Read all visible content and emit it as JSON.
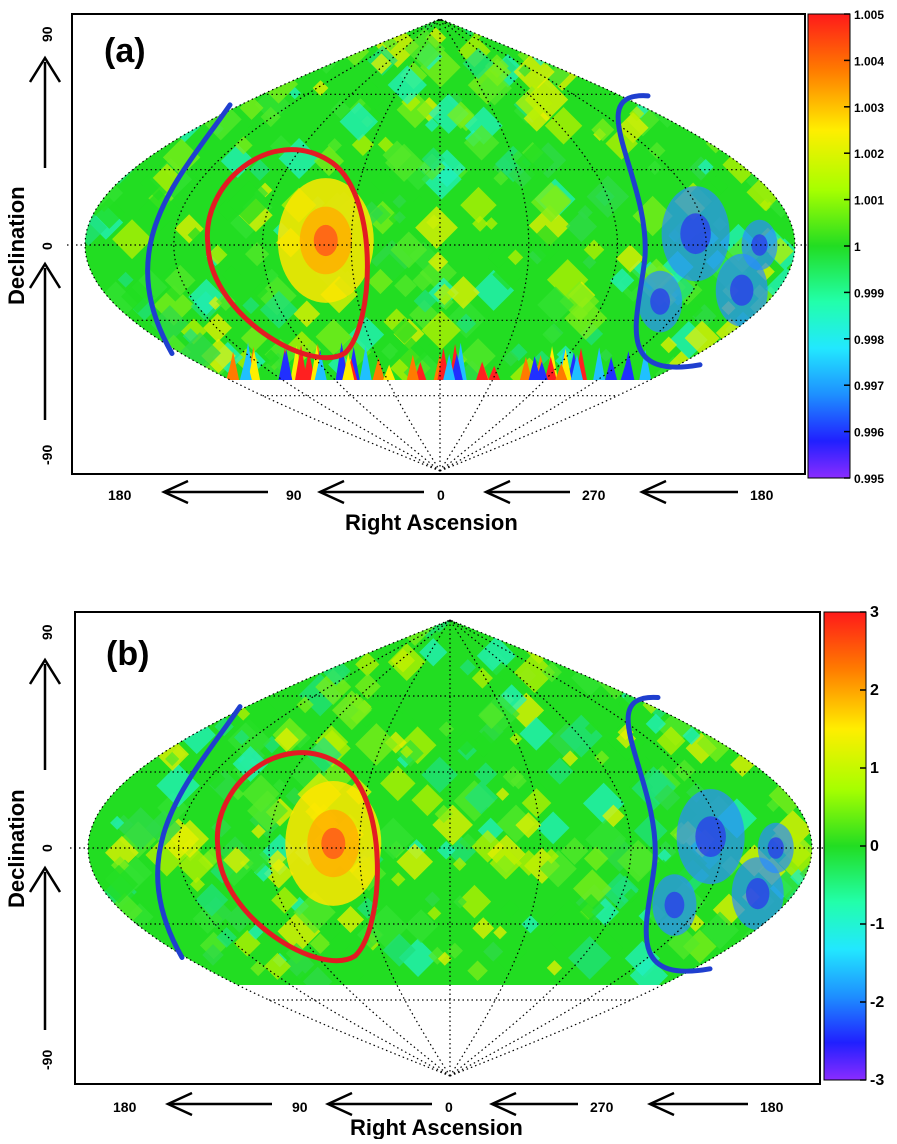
{
  "chart_data": [
    {
      "type": "heatmap",
      "panel_label": "(a)",
      "xlabel": "Right Ascension",
      "ylabel": "Declination",
      "x_ticks": [
        "180",
        "90",
        "0",
        "270",
        "180"
      ],
      "y_ticks": [
        "90",
        "0",
        "-90"
      ],
      "colorbar": {
        "ticks": [
          "1.005",
          "1.004",
          "1.003",
          "1.002",
          "1.001",
          "1",
          "0.999",
          "0.998",
          "0.997",
          "0.996",
          "0.995"
        ],
        "range": [
          0.995,
          1.005
        ]
      },
      "grid": true,
      "projection": "sinusoidal",
      "red_region_center": [
        100,
        0
      ],
      "blue_regions": [
        "left-edge",
        "right-edge"
      ]
    },
    {
      "type": "heatmap",
      "panel_label": "(b)",
      "xlabel": "Right Ascension",
      "ylabel": "Declination",
      "x_ticks": [
        "180",
        "90",
        "0",
        "270",
        "180"
      ],
      "y_ticks": [
        "90",
        "0",
        "-90"
      ],
      "colorbar": {
        "ticks": [
          "3",
          "2",
          "1",
          "0",
          "-1",
          "-2",
          "-3"
        ],
        "range": [
          -3,
          3
        ]
      },
      "grid": true,
      "projection": "sinusoidal",
      "red_region_center": [
        100,
        0
      ],
      "blue_regions": [
        "left-edge",
        "right-edge"
      ]
    }
  ],
  "colors": {
    "field": "#22dd22",
    "contour_red": "#e31b23",
    "contour_blue": "#1f3fcf"
  }
}
